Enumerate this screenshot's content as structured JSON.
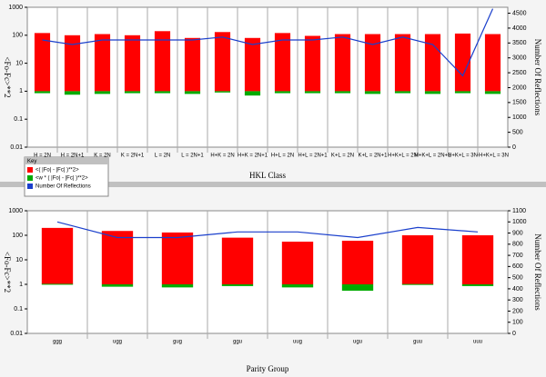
{
  "chart_data": [
    {
      "type": "bar",
      "xlabel": "HKL Class",
      "ylabel": "<Fo-Fc>**2",
      "y2label": "Number Of Reflections",
      "yscale": "log",
      "ylim": [
        0.01,
        1000
      ],
      "yticks": [
        0.01,
        0.1,
        1,
        10,
        100,
        1000
      ],
      "bar_base": 1,
      "y2lim": [
        0,
        4700
      ],
      "y2ticks": [
        0,
        500,
        1000,
        1500,
        2000,
        2500,
        3000,
        3500,
        4000,
        4500
      ],
      "legend_title": "Key",
      "legend": "lower left",
      "categories": [
        "H = 2N",
        "H = 2N+1",
        "K = 2N",
        "K = 2N+1",
        "L = 2N",
        "L = 2N+1",
        "H+K = 2N",
        "H+K = 2N+1",
        "H+L = 2N",
        "H+L = 2N+1",
        "K+L = 2N",
        "K+L = 2N+1",
        "H+K+L = 2N",
        "H+K+L = 2N+1",
        "H+K+L = 3N",
        "-H+K+L = 3N"
      ],
      "series": [
        {
          "name": "<( |Fo| - |Fc| )**2>",
          "type": "bar",
          "color": "#ff0000",
          "values": [
            120,
            100,
            110,
            100,
            140,
            80,
            130,
            80,
            120,
            95,
            110,
            110,
            110,
            110,
            115,
            110
          ]
        },
        {
          "name": "<w * ( |Fo| - |Fc| )**2>",
          "type": "bar",
          "color": "#00aa00",
          "values": [
            0.85,
            0.75,
            0.8,
            0.85,
            0.85,
            0.8,
            0.9,
            0.7,
            0.85,
            0.85,
            0.85,
            0.8,
            0.85,
            0.8,
            0.85,
            0.8
          ]
        },
        {
          "name": "Number Of Reflections",
          "type": "line",
          "axis": "y2",
          "color": "#1a3fcc",
          "values": [
            3600,
            3450,
            3600,
            3600,
            3600,
            3600,
            3700,
            3450,
            3600,
            3600,
            3700,
            3450,
            3700,
            3450,
            2400,
            4650
          ]
        }
      ]
    },
    {
      "type": "bar",
      "xlabel": "Parity Group",
      "ylabel": "<Fo-Fc>**2",
      "y2label": "Number Of Reflections",
      "yscale": "log",
      "ylim": [
        0.01,
        1000
      ],
      "yticks": [
        0.01,
        0.1,
        1,
        10,
        100,
        1000
      ],
      "bar_base": 1,
      "y2lim": [
        0,
        1100
      ],
      "y2ticks": [
        0,
        100,
        200,
        300,
        400,
        500,
        600,
        700,
        800,
        900,
        1000,
        1100
      ],
      "categories": [
        "ggg",
        "ugg",
        "gug",
        "ggu",
        "uug",
        "ugu",
        "guu",
        "uuu"
      ],
      "series": [
        {
          "name": "<( |Fo| - |Fc| )**2>",
          "type": "bar",
          "color": "#ff0000",
          "values": [
            200,
            150,
            130,
            80,
            55,
            60,
            100,
            100
          ]
        },
        {
          "name": "<w * ( |Fo| - |Fc| )**2>",
          "type": "bar",
          "color": "#00aa00",
          "values": [
            1.05,
            0.8,
            0.75,
            0.85,
            0.75,
            0.55,
            1.03,
            0.85
          ]
        },
        {
          "name": "Number Of Reflections",
          "type": "line",
          "axis": "y2",
          "color": "#1a3fcc",
          "values": [
            1000,
            860,
            860,
            910,
            910,
            860,
            950,
            910
          ]
        }
      ]
    }
  ]
}
